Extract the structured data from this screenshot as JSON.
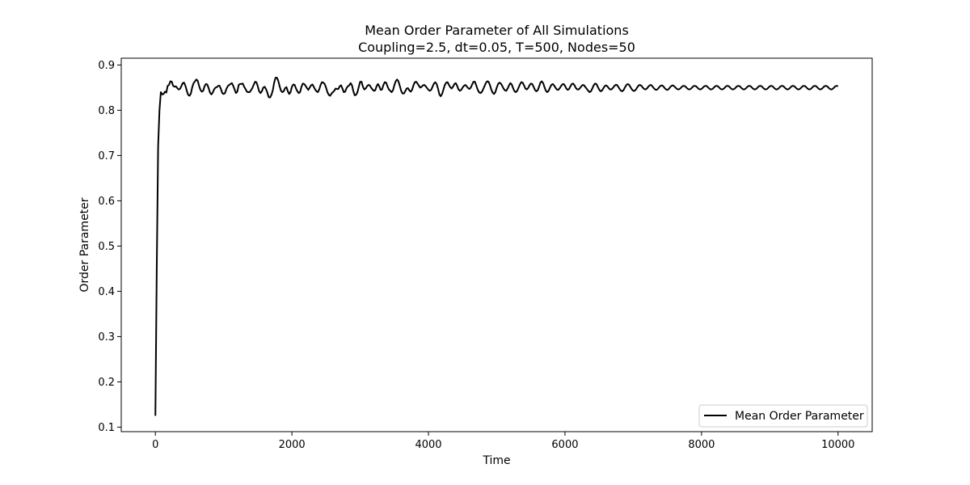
{
  "chart_data": {
    "type": "line",
    "title": "Mean Order Parameter of All Simulations",
    "subtitle": "Coupling=2.5, dt=0.05, T=500, Nodes=50",
    "xlabel": "Time",
    "ylabel": "Order Parameter",
    "xlim": [
      -500,
      10500
    ],
    "ylim": [
      0.09,
      0.915
    ],
    "xticks": [
      0,
      2000,
      4000,
      6000,
      8000,
      10000
    ],
    "yticks": [
      0.1,
      0.2,
      0.3,
      0.4,
      0.5,
      0.6,
      0.7,
      0.8,
      0.9
    ],
    "xtick_labels": [
      "0",
      "2000",
      "4000",
      "6000",
      "8000",
      "10000"
    ],
    "ytick_labels": [
      "0.1",
      "0.2",
      "0.3",
      "0.4",
      "0.5",
      "0.6",
      "0.7",
      "0.8",
      "0.9"
    ],
    "grid": false,
    "legend": {
      "placement": "lower-right"
    },
    "series": [
      {
        "name": "Mean Order Parameter",
        "color": "#000000",
        "x_start": 0,
        "x_step": 20,
        "values": [
          0.125,
          0.45,
          0.72,
          0.8,
          0.84,
          0.835,
          0.836,
          0.841,
          0.839,
          0.854,
          0.856,
          0.864,
          0.863,
          0.854,
          0.852,
          0.853,
          0.849,
          0.846,
          0.847,
          0.853,
          0.86,
          0.861,
          0.854,
          0.843,
          0.834,
          0.832,
          0.837,
          0.851,
          0.86,
          0.864,
          0.868,
          0.865,
          0.854,
          0.845,
          0.841,
          0.843,
          0.853,
          0.858,
          0.857,
          0.849,
          0.839,
          0.835,
          0.839,
          0.846,
          0.85,
          0.851,
          0.854,
          0.854,
          0.847,
          0.838,
          0.836,
          0.838,
          0.847,
          0.853,
          0.856,
          0.858,
          0.86,
          0.854,
          0.846,
          0.838,
          0.841,
          0.856,
          0.858,
          0.858,
          0.859,
          0.852,
          0.847,
          0.841,
          0.84,
          0.84,
          0.844,
          0.849,
          0.856,
          0.863,
          0.862,
          0.853,
          0.842,
          0.838,
          0.842,
          0.85,
          0.852,
          0.847,
          0.839,
          0.829,
          0.828,
          0.834,
          0.844,
          0.861,
          0.872,
          0.872,
          0.865,
          0.853,
          0.843,
          0.84,
          0.842,
          0.849,
          0.851,
          0.842,
          0.836,
          0.84,
          0.852,
          0.857,
          0.856,
          0.848,
          0.842,
          0.838,
          0.84,
          0.852,
          0.859,
          0.858,
          0.854,
          0.849,
          0.845,
          0.85,
          0.855,
          0.857,
          0.852,
          0.846,
          0.842,
          0.84,
          0.846,
          0.856,
          0.862,
          0.861,
          0.858,
          0.85,
          0.84,
          0.834,
          0.832,
          0.837,
          0.84,
          0.843,
          0.848,
          0.847,
          0.847,
          0.853,
          0.855,
          0.848,
          0.84,
          0.841,
          0.849,
          0.853,
          0.855,
          0.86,
          0.855,
          0.842,
          0.833,
          0.834,
          0.84,
          0.852,
          0.863,
          0.863,
          0.852,
          0.846,
          0.848,
          0.853,
          0.856,
          0.855,
          0.85,
          0.846,
          0.843,
          0.844,
          0.853,
          0.858,
          0.853,
          0.845,
          0.846,
          0.856,
          0.862,
          0.861,
          0.853,
          0.846,
          0.843,
          0.84,
          0.844,
          0.855,
          0.864,
          0.868,
          0.864,
          0.854,
          0.843,
          0.837,
          0.837,
          0.842,
          0.848,
          0.849,
          0.844,
          0.841,
          0.845,
          0.855,
          0.862,
          0.863,
          0.859,
          0.854,
          0.85,
          0.852,
          0.855,
          0.856,
          0.853,
          0.849,
          0.845,
          0.843,
          0.845,
          0.852,
          0.859,
          0.862,
          0.858,
          0.848,
          0.835,
          0.831,
          0.836,
          0.846,
          0.856,
          0.861,
          0.862,
          0.856,
          0.851,
          0.848,
          0.852,
          0.858,
          0.86,
          0.854,
          0.846,
          0.843,
          0.845,
          0.85,
          0.854,
          0.856,
          0.853,
          0.849,
          0.847,
          0.85,
          0.857,
          0.863,
          0.863,
          0.855,
          0.846,
          0.84,
          0.838,
          0.84,
          0.846,
          0.853,
          0.86,
          0.864,
          0.863,
          0.856,
          0.846,
          0.839,
          0.836,
          0.84,
          0.85,
          0.858,
          0.861,
          0.859,
          0.854,
          0.848,
          0.844,
          0.843,
          0.848,
          0.855,
          0.86,
          0.857,
          0.849,
          0.842,
          0.84,
          0.843,
          0.85,
          0.857,
          0.862,
          0.861,
          0.855,
          0.848,
          0.846,
          0.849,
          0.855,
          0.859,
          0.858,
          0.852,
          0.845,
          0.842,
          0.844,
          0.852,
          0.861,
          0.864,
          0.86,
          0.851,
          0.843,
          0.84,
          0.843,
          0.85,
          0.856,
          0.858,
          0.855,
          0.85,
          0.846,
          0.845,
          0.848,
          0.853,
          0.857,
          0.858,
          0.854,
          0.848,
          0.845,
          0.847,
          0.853,
          0.858,
          0.859,
          0.855,
          0.849,
          0.846,
          0.846,
          0.849,
          0.853,
          0.856,
          0.855,
          0.851,
          0.847,
          0.843,
          0.84,
          0.842,
          0.848,
          0.855,
          0.859,
          0.858,
          0.852,
          0.846,
          0.842,
          0.843,
          0.848,
          0.853,
          0.855,
          0.853,
          0.849,
          0.846,
          0.846,
          0.849,
          0.853,
          0.856,
          0.856,
          0.852,
          0.847,
          0.843,
          0.842,
          0.845,
          0.851,
          0.856,
          0.858,
          0.856,
          0.851,
          0.846,
          0.843,
          0.843,
          0.846,
          0.851,
          0.855,
          0.856,
          0.854,
          0.85,
          0.847,
          0.846,
          0.848,
          0.852,
          0.855,
          0.856,
          0.853,
          0.849,
          0.846,
          0.845,
          0.847,
          0.851,
          0.854,
          0.855,
          0.853,
          0.849,
          0.846,
          0.845,
          0.847,
          0.851,
          0.854,
          0.855,
          0.853,
          0.85,
          0.847,
          0.846,
          0.847,
          0.85,
          0.853,
          0.854,
          0.853,
          0.85,
          0.847,
          0.846,
          0.847,
          0.85,
          0.853,
          0.854,
          0.853,
          0.85,
          0.847,
          0.846,
          0.847,
          0.85,
          0.853,
          0.854,
          0.853,
          0.85,
          0.847,
          0.846,
          0.847,
          0.85,
          0.853,
          0.854,
          0.853,
          0.85,
          0.847,
          0.846,
          0.847,
          0.85,
          0.853,
          0.854,
          0.853,
          0.85,
          0.847,
          0.846,
          0.847,
          0.85,
          0.853,
          0.854,
          0.853,
          0.85,
          0.847,
          0.846,
          0.847,
          0.85,
          0.853,
          0.854,
          0.853,
          0.85,
          0.847,
          0.846,
          0.847,
          0.85,
          0.853,
          0.854,
          0.853,
          0.85,
          0.847,
          0.846,
          0.847,
          0.85,
          0.853,
          0.854,
          0.853,
          0.85,
          0.847,
          0.846,
          0.847,
          0.85,
          0.853,
          0.854,
          0.853,
          0.85,
          0.847,
          0.846,
          0.847,
          0.85,
          0.853,
          0.854,
          0.853,
          0.85,
          0.847,
          0.846,
          0.847,
          0.85,
          0.853,
          0.854,
          0.853,
          0.85,
          0.847,
          0.846,
          0.847,
          0.85,
          0.853,
          0.854,
          0.853,
          0.85,
          0.847,
          0.846,
          0.847,
          0.85,
          0.853,
          0.854,
          0.853,
          0.85,
          0.847,
          0.846,
          0.847,
          0.85,
          0.853,
          0.854,
          0.853
        ]
      }
    ]
  }
}
